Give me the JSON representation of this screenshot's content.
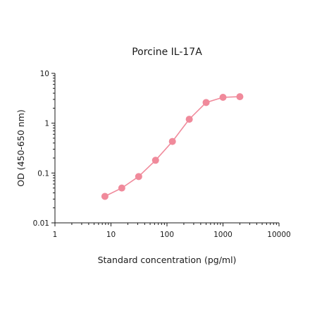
{
  "chart_data": {
    "type": "line",
    "title": "Porcine IL-17A",
    "xlabel": "Standard concentration (pg/ml)",
    "ylabel": "OD (450-650 nm)",
    "x_scale": "log",
    "y_scale": "log",
    "xlim": [
      1,
      10000
    ],
    "ylim": [
      0.01,
      10
    ],
    "x_ticks": [
      "1",
      "10",
      "100",
      "1000",
      "10000"
    ],
    "y_ticks": [
      "0.01",
      "0.1",
      "1",
      "10"
    ],
    "grid": false,
    "legend": "none",
    "series": [
      {
        "color": "#f08a9b",
        "x": [
          7.8,
          15.6,
          31.25,
          62.5,
          125,
          250,
          500,
          1000,
          2000
        ],
        "y": [
          0.034,
          0.05,
          0.085,
          0.18,
          0.43,
          1.2,
          2.6,
          3.3,
          3.4
        ]
      }
    ]
  }
}
